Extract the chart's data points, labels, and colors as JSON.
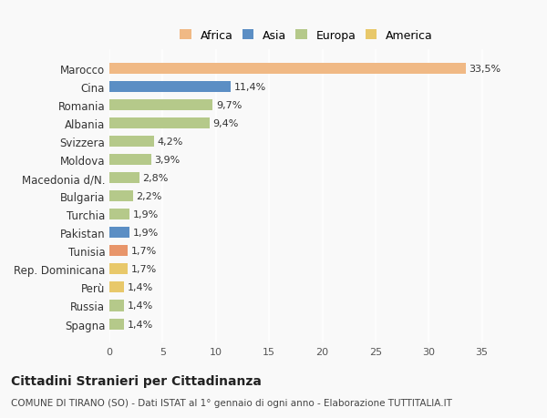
{
  "categories": [
    "Spagna",
    "Russia",
    "Perù",
    "Rep. Dominicana",
    "Tunisia",
    "Pakistan",
    "Turchia",
    "Bulgaria",
    "Macedonia d/N.",
    "Moldova",
    "Svizzera",
    "Albania",
    "Romania",
    "Cina",
    "Marocco"
  ],
  "values": [
    1.4,
    1.4,
    1.4,
    1.7,
    1.7,
    1.9,
    1.9,
    2.2,
    2.8,
    3.9,
    4.2,
    9.4,
    9.7,
    11.4,
    33.5
  ],
  "labels": [
    "1,4%",
    "1,4%",
    "1,4%",
    "1,7%",
    "1,7%",
    "1,9%",
    "1,9%",
    "2,2%",
    "2,8%",
    "3,9%",
    "4,2%",
    "9,4%",
    "9,7%",
    "11,4%",
    "33,5%"
  ],
  "colors": [
    "#b5c98a",
    "#b5c98a",
    "#e8c86a",
    "#e8c86a",
    "#e8956a",
    "#5b8ec4",
    "#b5c98a",
    "#b5c98a",
    "#b5c98a",
    "#b5c98a",
    "#b5c98a",
    "#b5c98a",
    "#b5c98a",
    "#5b8ec4",
    "#f0b985"
  ],
  "legend_labels": [
    "Africa",
    "Asia",
    "Europa",
    "America"
  ],
  "legend_colors": [
    "#f0b985",
    "#5b8ec4",
    "#b5c98a",
    "#e8c86a"
  ],
  "title": "Cittadini Stranieri per Cittadinanza",
  "subtitle": "COMUNE DI TIRANO (SO) - Dati ISTAT al 1° gennaio di ogni anno - Elaborazione TUTTITALIA.IT",
  "xlim": [
    0,
    37
  ],
  "xticks": [
    0,
    5,
    10,
    15,
    20,
    25,
    30,
    35
  ],
  "background_color": "#f9f9f9"
}
